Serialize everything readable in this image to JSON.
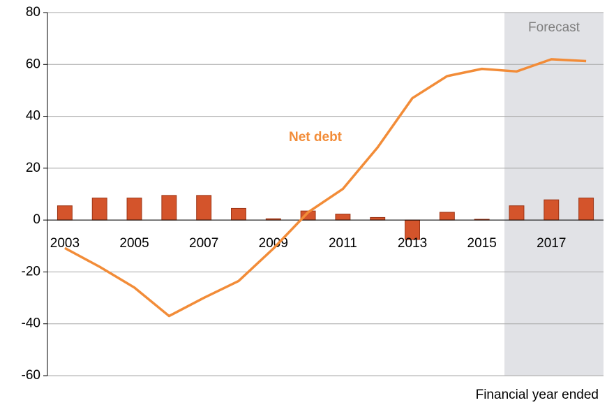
{
  "chart_data": {
    "type": "bar_line",
    "categories": [
      "2003",
      null,
      "2005",
      null,
      "2007",
      null,
      "2009",
      null,
      "2011",
      null,
      "2013",
      null,
      "2015",
      null,
      "2017",
      null
    ],
    "series": [
      {
        "type": "bar",
        "color": "#d4542b",
        "values": [
          5.5,
          8.5,
          8.5,
          9.5,
          9.5,
          4.5,
          0.5,
          3.5,
          2.3,
          1,
          -7.5,
          3,
          0.3,
          5.5,
          7.8,
          8.5
        ]
      },
      {
        "type": "line",
        "name": "Net debt",
        "color": "#f28c38",
        "values": [
          -10.8,
          -18,
          -26,
          -37,
          -30,
          -23.5,
          -11,
          3,
          12,
          28,
          47,
          55.5,
          58.3,
          57.3,
          62,
          61.3
        ]
      }
    ],
    "annotations": [
      "Forecast"
    ],
    "x_label": "Financial year ended",
    "ylim": [
      -60,
      80
    ],
    "yticks": [
      -60,
      -40,
      -20,
      0,
      20,
      40,
      60,
      80
    ],
    "grid": true
  }
}
